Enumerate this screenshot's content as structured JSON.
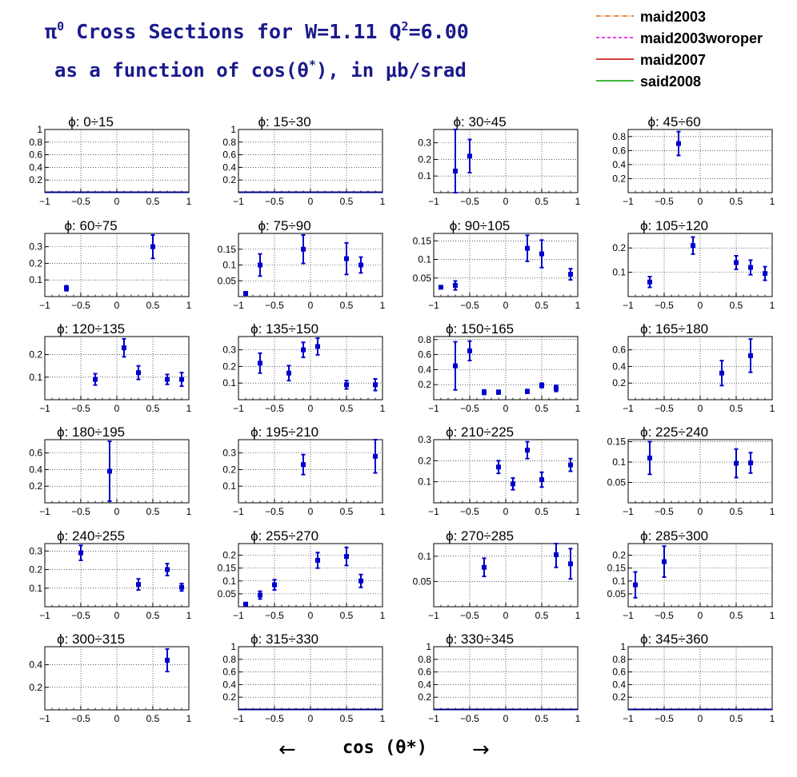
{
  "title": {
    "line1_pi": "π",
    "line1_pi_sup": "0",
    "line1_main": " Cross Sections for W=1.11  Q",
    "line1_q_sup": "2",
    "line1_tail": "=6.00",
    "line2_a": "as a function of cos(θ",
    "line2_sup": "*",
    "line2_b": "), in μb/srad"
  },
  "legend": [
    {
      "label": "maid2003",
      "color": "#e06000",
      "dash": "6,2,1,2"
    },
    {
      "label": "maid2003woroper",
      "color": "#e000e0",
      "dash": "4,3"
    },
    {
      "label": "maid2007",
      "color": "#c00000",
      "dash": ""
    },
    {
      "label": "said2008",
      "color": "#00a000",
      "dash": ""
    }
  ],
  "x_axis": {
    "title": "cos (θ*)",
    "left_arrow": "←",
    "right_arrow": "→"
  },
  "chart_data": [
    {
      "type": "scatter",
      "title": "ϕ:  0÷15",
      "xlim": [
        -1,
        1
      ],
      "ylim": [
        0,
        1
      ],
      "yticks": [
        0.2,
        0.4,
        0.6,
        0.8,
        1
      ],
      "ytick_labels": [
        "0.2",
        "0.4",
        "0.6",
        "0.8",
        "1"
      ],
      "points": []
    },
    {
      "type": "scatter",
      "title": "ϕ:  15÷30",
      "xlim": [
        -1,
        1
      ],
      "ylim": [
        0,
        1
      ],
      "yticks": [
        0.2,
        0.4,
        0.6,
        0.8,
        1
      ],
      "ytick_labels": [
        "0.2",
        "0.4",
        "0.6",
        "0.8",
        "1"
      ],
      "points": []
    },
    {
      "type": "scatter",
      "title": "ϕ:  30÷45",
      "xlim": [
        -1,
        1
      ],
      "ylim": [
        0,
        0.38
      ],
      "yticks": [
        0.1,
        0.2,
        0.3
      ],
      "ytick_labels": [
        "0.1",
        "0.2",
        "0.3"
      ],
      "points": [
        {
          "x": -0.7,
          "y": 0.13,
          "err": 0.25
        },
        {
          "x": -0.5,
          "y": 0.22,
          "err": 0.1
        }
      ]
    },
    {
      "type": "scatter",
      "title": "ϕ:  45÷60",
      "xlim": [
        -1,
        1
      ],
      "ylim": [
        0,
        0.9
      ],
      "yticks": [
        0.2,
        0.4,
        0.6,
        0.8
      ],
      "ytick_labels": [
        "0.2",
        "0.4",
        "0.6",
        "0.8"
      ],
      "points": [
        {
          "x": -0.3,
          "y": 0.7,
          "err": 0.17
        }
      ]
    },
    {
      "type": "scatter",
      "title": "ϕ:  60÷75",
      "xlim": [
        -1,
        1
      ],
      "ylim": [
        0,
        0.38
      ],
      "yticks": [
        0.1,
        0.2,
        0.3
      ],
      "ytick_labels": [
        "0.1",
        "0.2",
        "0.3"
      ],
      "points": [
        {
          "x": -0.7,
          "y": 0.05,
          "err": 0.015
        },
        {
          "x": 0.5,
          "y": 0.3,
          "err": 0.07
        }
      ]
    },
    {
      "type": "scatter",
      "title": "ϕ:  75÷90",
      "xlim": [
        -1,
        1
      ],
      "ylim": [
        0,
        0.2
      ],
      "yticks": [
        0.05,
        0.1,
        0.15
      ],
      "ytick_labels": [
        "0.05",
        "0.1",
        "0.15"
      ],
      "points": [
        {
          "x": -0.9,
          "y": 0.01,
          "err": 0.002
        },
        {
          "x": -0.7,
          "y": 0.1,
          "err": 0.035
        },
        {
          "x": -0.1,
          "y": 0.15,
          "err": 0.045
        },
        {
          "x": 0.5,
          "y": 0.12,
          "err": 0.05
        },
        {
          "x": 0.7,
          "y": 0.1,
          "err": 0.025
        }
      ]
    },
    {
      "type": "scatter",
      "title": "ϕ:  90÷105",
      "xlim": [
        -1,
        1
      ],
      "ylim": [
        0,
        0.17
      ],
      "yticks": [
        0.05,
        0.1,
        0.15
      ],
      "ytick_labels": [
        "0.05",
        "0.1",
        "0.15"
      ],
      "points": [
        {
          "x": -0.9,
          "y": 0.025,
          "err": 0.002
        },
        {
          "x": -0.7,
          "y": 0.03,
          "err": 0.012
        },
        {
          "x": 0.3,
          "y": 0.13,
          "err": 0.035
        },
        {
          "x": 0.5,
          "y": 0.115,
          "err": 0.037
        },
        {
          "x": 0.9,
          "y": 0.06,
          "err": 0.015
        }
      ]
    },
    {
      "type": "scatter",
      "title": "ϕ:  105÷120",
      "xlim": [
        -1,
        1
      ],
      "ylim": [
        0,
        0.26
      ],
      "yticks": [
        0.1,
        0.2
      ],
      "ytick_labels": [
        "0.1",
        "0.2"
      ],
      "points": [
        {
          "x": -0.7,
          "y": 0.06,
          "err": 0.022
        },
        {
          "x": -0.1,
          "y": 0.21,
          "err": 0.035
        },
        {
          "x": 0.5,
          "y": 0.14,
          "err": 0.028
        },
        {
          "x": 0.7,
          "y": 0.12,
          "err": 0.03
        },
        {
          "x": 0.9,
          "y": 0.095,
          "err": 0.028
        }
      ]
    },
    {
      "type": "scatter",
      "title": "ϕ:  120÷135",
      "xlim": [
        -1,
        1
      ],
      "ylim": [
        0,
        0.28
      ],
      "yticks": [
        0.1,
        0.2
      ],
      "ytick_labels": [
        "0.1",
        "0.2"
      ],
      "points": [
        {
          "x": -0.3,
          "y": 0.09,
          "err": 0.025
        },
        {
          "x": 0.1,
          "y": 0.23,
          "err": 0.04
        },
        {
          "x": 0.3,
          "y": 0.12,
          "err": 0.03
        },
        {
          "x": 0.7,
          "y": 0.09,
          "err": 0.022
        },
        {
          "x": 0.9,
          "y": 0.09,
          "err": 0.03
        }
      ]
    },
    {
      "type": "scatter",
      "title": "ϕ:  135÷150",
      "xlim": [
        -1,
        1
      ],
      "ylim": [
        0,
        0.38
      ],
      "yticks": [
        0.1,
        0.2,
        0.3
      ],
      "ytick_labels": [
        "0.1",
        "0.2",
        "0.3"
      ],
      "points": [
        {
          "x": -0.7,
          "y": 0.22,
          "err": 0.06
        },
        {
          "x": -0.3,
          "y": 0.16,
          "err": 0.045
        },
        {
          "x": -0.1,
          "y": 0.3,
          "err": 0.045
        },
        {
          "x": 0.1,
          "y": 0.32,
          "err": 0.05
        },
        {
          "x": 0.5,
          "y": 0.09,
          "err": 0.025
        },
        {
          "x": 0.9,
          "y": 0.09,
          "err": 0.035
        }
      ]
    },
    {
      "type": "scatter",
      "title": "ϕ:  150÷165",
      "xlim": [
        -1,
        1
      ],
      "ylim": [
        0,
        0.84
      ],
      "yticks": [
        0.2,
        0.4,
        0.6,
        0.8
      ],
      "ytick_labels": [
        "0.2",
        "0.4",
        "0.6",
        "0.8"
      ],
      "points": [
        {
          "x": -0.7,
          "y": 0.45,
          "err": 0.32
        },
        {
          "x": -0.5,
          "y": 0.65,
          "err": 0.13
        },
        {
          "x": -0.3,
          "y": 0.1,
          "err": 0.03
        },
        {
          "x": -0.1,
          "y": 0.1,
          "err": 0.025
        },
        {
          "x": 0.3,
          "y": 0.11,
          "err": 0.025
        },
        {
          "x": 0.5,
          "y": 0.19,
          "err": 0.03
        },
        {
          "x": 0.7,
          "y": 0.15,
          "err": 0.04
        }
      ]
    },
    {
      "type": "scatter",
      "title": "ϕ:  165÷180",
      "xlim": [
        -1,
        1
      ],
      "ylim": [
        0,
        0.76
      ],
      "yticks": [
        0.2,
        0.4,
        0.6
      ],
      "ytick_labels": [
        "0.2",
        "0.4",
        "0.6"
      ],
      "points": [
        {
          "x": 0.3,
          "y": 0.32,
          "err": 0.15
        },
        {
          "x": 0.7,
          "y": 0.53,
          "err": 0.2
        }
      ]
    },
    {
      "type": "scatter",
      "title": "ϕ:  180÷195",
      "xlim": [
        -1,
        1
      ],
      "ylim": [
        0,
        0.76
      ],
      "yticks": [
        0.2,
        0.4,
        0.6
      ],
      "ytick_labels": [
        "0.2",
        "0.4",
        "0.6"
      ],
      "points": [
        {
          "x": -0.1,
          "y": 0.38,
          "err": 0.36
        }
      ]
    },
    {
      "type": "scatter",
      "title": "ϕ:  195÷210",
      "xlim": [
        -1,
        1
      ],
      "ylim": [
        0,
        0.38
      ],
      "yticks": [
        0.1,
        0.2,
        0.3
      ],
      "ytick_labels": [
        "0.1",
        "0.2",
        "0.3"
      ],
      "points": [
        {
          "x": -0.1,
          "y": 0.23,
          "err": 0.06
        },
        {
          "x": 0.9,
          "y": 0.28,
          "err": 0.1
        }
      ]
    },
    {
      "type": "scatter",
      "title": "ϕ:  210÷225",
      "xlim": [
        -1,
        1
      ],
      "ylim": [
        0,
        0.3
      ],
      "yticks": [
        0.1,
        0.2,
        0.3
      ],
      "ytick_labels": [
        "0.1",
        "0.2",
        "0.3"
      ],
      "points": [
        {
          "x": -0.1,
          "y": 0.17,
          "err": 0.03
        },
        {
          "x": 0.1,
          "y": 0.09,
          "err": 0.028
        },
        {
          "x": 0.3,
          "y": 0.25,
          "err": 0.04
        },
        {
          "x": 0.5,
          "y": 0.11,
          "err": 0.035
        },
        {
          "x": 0.9,
          "y": 0.18,
          "err": 0.03
        }
      ]
    },
    {
      "type": "scatter",
      "title": "ϕ:  225÷240",
      "xlim": [
        -1,
        1
      ],
      "ylim": [
        0,
        0.155
      ],
      "yticks": [
        0.05,
        0.1,
        0.15
      ],
      "ytick_labels": [
        "0.05",
        "0.1",
        "0.15"
      ],
      "points": [
        {
          "x": -0.7,
          "y": 0.11,
          "err": 0.04
        },
        {
          "x": 0.5,
          "y": 0.097,
          "err": 0.035
        },
        {
          "x": 0.7,
          "y": 0.098,
          "err": 0.025
        }
      ]
    },
    {
      "type": "scatter",
      "title": "ϕ:  240÷255",
      "xlim": [
        -1,
        1
      ],
      "ylim": [
        0,
        0.34
      ],
      "yticks": [
        0.1,
        0.2,
        0.3
      ],
      "ytick_labels": [
        "0.1",
        "0.2",
        "0.3"
      ],
      "points": [
        {
          "x": -0.5,
          "y": 0.29,
          "err": 0.04
        },
        {
          "x": 0.3,
          "y": 0.12,
          "err": 0.03
        },
        {
          "x": 0.7,
          "y": 0.2,
          "err": 0.032
        },
        {
          "x": 0.9,
          "y": 0.105,
          "err": 0.02
        }
      ]
    },
    {
      "type": "scatter",
      "title": "ϕ:  255÷270",
      "xlim": [
        -1,
        1
      ],
      "ylim": [
        0,
        0.245
      ],
      "yticks": [
        0.05,
        0.1,
        0.15,
        0.2
      ],
      "ytick_labels": [
        "0.05",
        "0.1",
        "0.15",
        "0.2"
      ],
      "points": [
        {
          "x": -0.9,
          "y": 0.01,
          "err": 0.003
        },
        {
          "x": -0.7,
          "y": 0.045,
          "err": 0.015
        },
        {
          "x": -0.5,
          "y": 0.085,
          "err": 0.02
        },
        {
          "x": 0.1,
          "y": 0.18,
          "err": 0.03
        },
        {
          "x": 0.5,
          "y": 0.195,
          "err": 0.035
        },
        {
          "x": 0.7,
          "y": 0.1,
          "err": 0.025
        }
      ]
    },
    {
      "type": "scatter",
      "title": "ϕ:  270÷285",
      "xlim": [
        -1,
        1
      ],
      "ylim": [
        0,
        0.125
      ],
      "yticks": [
        0.05,
        0.1
      ],
      "ytick_labels": [
        "0.05",
        "0.1"
      ],
      "points": [
        {
          "x": -0.3,
          "y": 0.078,
          "err": 0.018
        },
        {
          "x": 0.7,
          "y": 0.103,
          "err": 0.025
        },
        {
          "x": 0.9,
          "y": 0.085,
          "err": 0.03
        }
      ]
    },
    {
      "type": "scatter",
      "title": "ϕ:  285÷300",
      "xlim": [
        -1,
        1
      ],
      "ylim": [
        0,
        0.245
      ],
      "yticks": [
        0.05,
        0.1,
        0.15,
        0.2
      ],
      "ytick_labels": [
        "0.05",
        "0.1",
        "0.15",
        "0.2"
      ],
      "points": [
        {
          "x": -0.9,
          "y": 0.085,
          "err": 0.05
        },
        {
          "x": -0.5,
          "y": 0.175,
          "err": 0.06
        }
      ]
    },
    {
      "type": "scatter",
      "title": "ϕ:  300÷315",
      "xlim": [
        -1,
        1
      ],
      "ylim": [
        0,
        0.56
      ],
      "yticks": [
        0.2,
        0.4
      ],
      "ytick_labels": [
        "0.2",
        "0.4"
      ],
      "points": [
        {
          "x": 0.7,
          "y": 0.44,
          "err": 0.1
        }
      ]
    },
    {
      "type": "scatter",
      "title": "ϕ:  315÷330",
      "xlim": [
        -1,
        1
      ],
      "ylim": [
        0,
        1
      ],
      "yticks": [
        0.2,
        0.4,
        0.6,
        0.8,
        1
      ],
      "ytick_labels": [
        "0.2",
        "0.4",
        "0.6",
        "0.8",
        "1"
      ],
      "points": []
    },
    {
      "type": "scatter",
      "title": "ϕ:  330÷345",
      "xlim": [
        -1,
        1
      ],
      "ylim": [
        0,
        1
      ],
      "yticks": [
        0.2,
        0.4,
        0.6,
        0.8,
        1
      ],
      "ytick_labels": [
        "0.2",
        "0.4",
        "0.6",
        "0.8",
        "1"
      ],
      "points": []
    },
    {
      "type": "scatter",
      "title": "ϕ:  345÷360",
      "xlim": [
        -1,
        1
      ],
      "ylim": [
        0,
        1
      ],
      "yticks": [
        0.2,
        0.4,
        0.6,
        0.8,
        1
      ],
      "ytick_labels": [
        "0.2",
        "0.4",
        "0.6",
        "0.8",
        "1"
      ],
      "points": []
    }
  ],
  "xticks": [
    -1,
    -0.5,
    0,
    0.5,
    1
  ],
  "xtick_labels": [
    "−1",
    "−0.5",
    "0",
    "0.5",
    "1"
  ],
  "colors": {
    "marker": "#0000cc",
    "axis": "#000000",
    "grid": "#000000",
    "title": "#1a1a8c",
    "zero_line": "#00008b"
  }
}
